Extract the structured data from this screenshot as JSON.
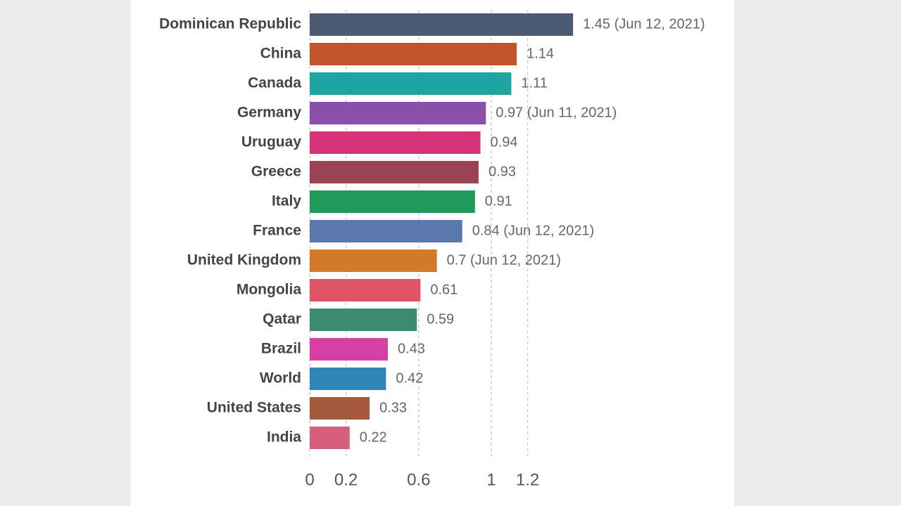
{
  "chart_data": {
    "type": "hbar",
    "categories": [
      "Dominican Republic",
      "China",
      "Canada",
      "Germany",
      "Uruguay",
      "Greece",
      "Italy",
      "France",
      "United Kingdom",
      "Mongolia",
      "Qatar",
      "Brazil",
      "World",
      "United States",
      "India"
    ],
    "values": [
      1.45,
      1.14,
      1.11,
      0.97,
      0.94,
      0.93,
      0.91,
      0.84,
      0.7,
      0.61,
      0.59,
      0.43,
      0.42,
      0.33,
      0.22
    ],
    "value_labels": [
      "1.45 (Jun 12, 2021)",
      "1.14",
      "1.11",
      "0.97 (Jun 11, 2021)",
      "0.94",
      "0.93",
      "0.91",
      "0.84 (Jun 12, 2021)",
      "0.7 (Jun 12, 2021)",
      "0.61",
      "0.59",
      "0.43",
      "0.42",
      "0.33",
      "0.22"
    ],
    "colors": [
      "#4c5a73",
      "#c0552b",
      "#1ea5a2",
      "#8a4fa8",
      "#d6337a",
      "#9a4354",
      "#1f9a5a",
      "#5b78ac",
      "#d27a2b",
      "#df5566",
      "#3d8a73",
      "#d63fa6",
      "#2f86b8",
      "#a55a3d",
      "#d65f7c"
    ],
    "xlim": [
      0,
      1.5
    ],
    "xticks": [
      0,
      0.2,
      0.6,
      1,
      1.2
    ],
    "grid": true
  }
}
